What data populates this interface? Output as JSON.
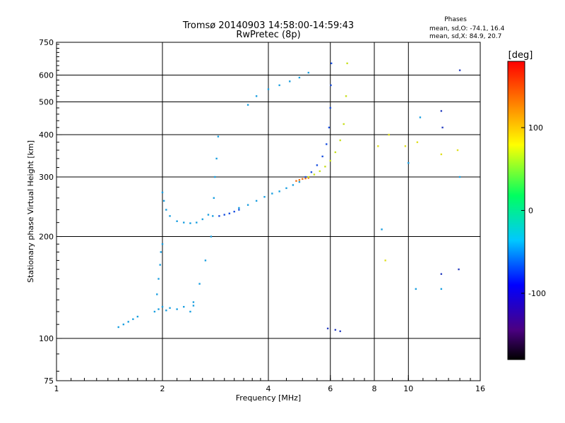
{
  "chart_data": {
    "type": "scatter",
    "title": "Tromsø 20140903 14:58:00-14:59:43",
    "subtitle": "RwPretec (8p)",
    "xlabel": "Frequency [MHz]",
    "ylabel": "Stationary phase Virtual Height [km]",
    "x_scale": "log2",
    "y_scale": "log",
    "xlim": [
      1,
      16
    ],
    "ylim": [
      75,
      750
    ],
    "x_ticks": [
      1,
      2,
      4,
      6,
      8,
      10,
      16
    ],
    "y_ticks": [
      75,
      100,
      200,
      300,
      400,
      500,
      600,
      750
    ],
    "x_gridlines": [
      2,
      4,
      6,
      8,
      10
    ],
    "y_gridlines": [
      100,
      200,
      300,
      400,
      500,
      600
    ],
    "grid": true,
    "stats": {
      "heading": "Phases",
      "line_o": "mean, sd,O: -74.1, 16.4",
      "line_x": "mean, sd,X:  84.9, 20.7"
    },
    "colorbar": {
      "label": "[deg]",
      "range": [
        -180,
        180
      ],
      "ticks": [
        100,
        0,
        -100
      ]
    },
    "series": [
      {
        "color": "#1a9fe0",
        "x": [
          1.5,
          1.55,
          1.6,
          1.65,
          1.7
        ],
        "y": [
          108,
          110,
          112,
          114,
          116
        ]
      },
      {
        "color": "#1a9fe0",
        "x": [
          1.95,
          2.0,
          2.05,
          2.1,
          2.2,
          2.3,
          2.4,
          2.45
        ],
        "y": [
          122,
          124,
          121,
          123,
          122,
          124,
          120,
          125
        ]
      },
      {
        "color": "#1a9fe0",
        "x": [
          1.9,
          1.93,
          1.95,
          1.97,
          1.98,
          2.0
        ],
        "y": [
          120,
          135,
          150,
          165,
          180,
          190
        ]
      },
      {
        "color": "#1a9fe0",
        "x": [
          2.0,
          2.02,
          2.05,
          2.1,
          2.2,
          2.3,
          2.4,
          2.5,
          2.6,
          2.7
        ],
        "y": [
          270,
          255,
          240,
          230,
          222,
          220,
          219,
          220,
          225,
          232
        ]
      },
      {
        "color": "#1a9fe0",
        "x": [
          2.45,
          2.55,
          2.65,
          2.75,
          2.78,
          2.8,
          2.82,
          2.85,
          2.88
        ],
        "y": [
          128,
          145,
          170,
          200,
          230,
          260,
          300,
          340,
          395
        ]
      },
      {
        "color": "#1a50e0",
        "x": [
          2.9,
          3.0,
          3.1,
          3.2,
          3.3
        ],
        "y": [
          230,
          232,
          234,
          237,
          240
        ]
      },
      {
        "color": "#1a9fe0",
        "x": [
          3.3,
          3.5,
          3.7,
          3.9,
          4.1,
          4.3,
          4.5,
          4.7,
          4.9
        ],
        "y": [
          243,
          248,
          255,
          262,
          268,
          272,
          278,
          284,
          290
        ]
      },
      {
        "color": "#f07010",
        "x": [
          4.8,
          4.9,
          5.0,
          5.1,
          5.2
        ],
        "y": [
          292,
          294,
          296,
          297,
          298
        ]
      },
      {
        "color": "#1a50e0",
        "x": [
          5.1,
          5.3,
          5.5,
          5.7,
          5.85,
          5.95,
          6.0,
          6.02,
          6.04
        ],
        "y": [
          300,
          310,
          325,
          345,
          375,
          420,
          480,
          560,
          650
        ]
      },
      {
        "color": "#c8e020",
        "x": [
          5.2,
          5.4,
          5.6,
          5.8,
          6.0,
          6.2,
          6.4,
          6.55,
          6.65,
          6.7
        ],
        "y": [
          300,
          305,
          312,
          322,
          335,
          355,
          385,
          430,
          520,
          650
        ]
      },
      {
        "color": "#1a9fe0",
        "x": [
          3.5,
          3.7,
          4.0,
          4.3,
          4.6,
          4.9,
          5.2
        ],
        "y": [
          490,
          520,
          545,
          560,
          575,
          590,
          610
        ]
      },
      {
        "color": "#2a40c0",
        "x": [
          5.9,
          6.2,
          6.4
        ],
        "y": [
          107,
          106,
          105
        ]
      },
      {
        "color": "#e0e020",
        "x": [
          8.2,
          8.6,
          8.8,
          9.8,
          10.6,
          12.4,
          13.8
        ],
        "y": [
          370,
          170,
          400,
          370,
          380,
          350,
          360
        ]
      },
      {
        "color": "#1a9fe0",
        "x": [
          8.4,
          10.0,
          10.5,
          10.8,
          12.4,
          14.0
        ],
        "y": [
          210,
          330,
          140,
          450,
          140,
          300
        ]
      },
      {
        "color": "#2a40c0",
        "x": [
          12.4,
          12.5,
          12.4,
          13.9,
          14.0
        ],
        "y": [
          470,
          420,
          155,
          160,
          620
        ]
      }
    ]
  }
}
